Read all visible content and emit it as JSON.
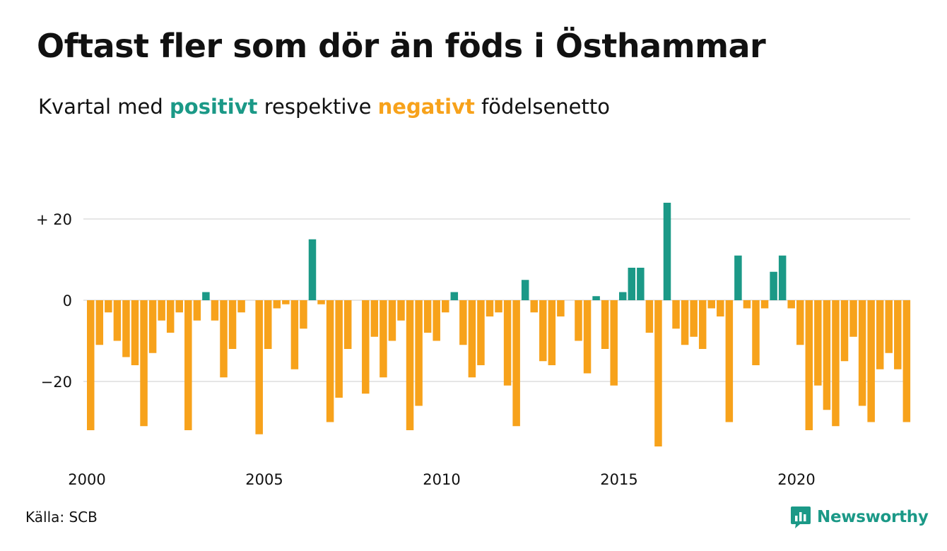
{
  "header": {
    "title": "Oftast fler som dör än föds i Östhammar",
    "subtitle_prefix": "Kvartal med",
    "subtitle_positive": "positivt",
    "subtitle_middle": "respektive",
    "subtitle_negative": "negativt",
    "subtitle_suffix": "födelsenetto"
  },
  "footer": {
    "source": "Källa: SCB",
    "brand": "Newsworthy"
  },
  "colors": {
    "positive": "#1b9987",
    "negative": "#f7a21b",
    "grid": "#dddddd",
    "text": "#111111"
  },
  "chart_data": {
    "type": "bar",
    "x_start": "2000 Q1",
    "frequency": "quarterly",
    "ylim": [
      -38,
      27
    ],
    "yticks": [
      20,
      0,
      -20
    ],
    "ytick_labels": [
      "+ 20",
      "0",
      "−20"
    ],
    "xticks": [
      "2000",
      "2005",
      "2010",
      "2015",
      "2020"
    ],
    "grid": true,
    "values": [
      -32,
      -11,
      -3,
      -10,
      -14,
      -16,
      -31,
      -13,
      -5,
      -8,
      -3,
      -32,
      -5,
      2,
      -5,
      -19,
      -12,
      -3,
      0,
      -33,
      -12,
      -2,
      -1,
      -17,
      -7,
      15,
      -1,
      -30,
      -24,
      -12,
      0,
      -23,
      -9,
      -19,
      -10,
      -5,
      -32,
      -26,
      -8,
      -10,
      -3,
      2,
      -11,
      -19,
      -16,
      -4,
      -3,
      -21,
      -31,
      5,
      -3,
      -15,
      -16,
      -4,
      0,
      -10,
      -18,
      1,
      -12,
      -21,
      2,
      8,
      8,
      -8,
      -36,
      24,
      -7,
      -11,
      -9,
      -12,
      -2,
      -4,
      -30,
      11,
      -2,
      -16,
      -2,
      7,
      11,
      -2,
      -11,
      -32,
      -21,
      -27,
      -31,
      -15,
      -9,
      -26,
      -30,
      -17,
      -13,
      -17,
      -30
    ]
  }
}
